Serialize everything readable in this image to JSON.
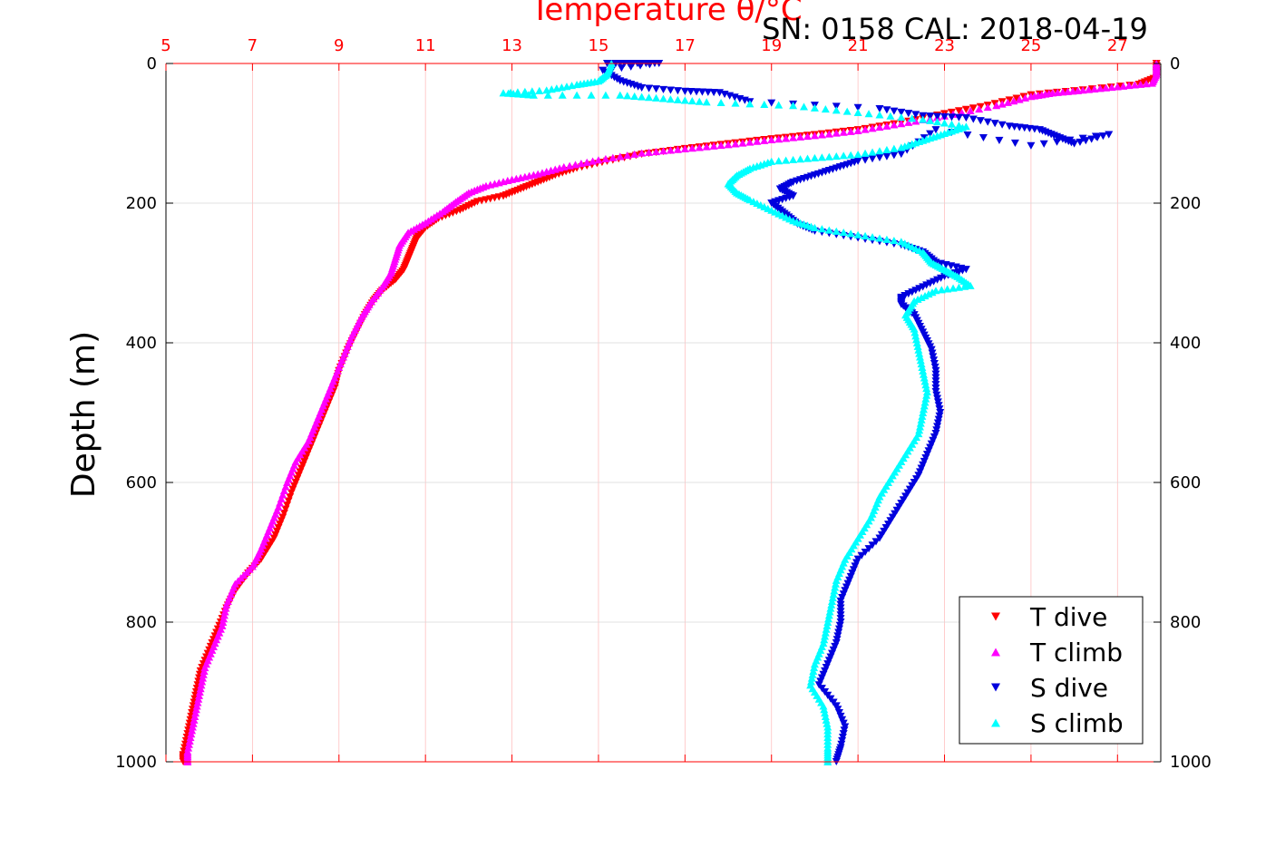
{
  "header": {
    "sn_cal_label": "SN: 0158  CAL: 2018-04-19"
  },
  "chart_data": {
    "type": "scatter",
    "top_axis": {
      "label": "Temperature θ/°C",
      "range": [
        5,
        28
      ],
      "ticks": [
        "5",
        "7",
        "9",
        "11",
        "13",
        "15",
        "17",
        "19",
        "21",
        "23",
        "25",
        "27"
      ],
      "color": "#ff0000"
    },
    "y_axis": {
      "label": "Depth (m)",
      "range": [
        0,
        1000
      ],
      "reversed": true,
      "ticks": [
        "0",
        "200",
        "400",
        "600",
        "800",
        "1000"
      ]
    },
    "grid": true,
    "legend": {
      "placement": "bottom-right",
      "entries": [
        {
          "name": "T dive",
          "marker": "triangle-down",
          "color": "#ff0000"
        },
        {
          "name": "T climb",
          "marker": "triangle-up",
          "color": "#ff00ff"
        },
        {
          "name": "S dive",
          "marker": "triangle-down",
          "color": "#0000dd"
        },
        {
          "name": "S climb",
          "marker": "triangle-up",
          "color": "#00ffff"
        }
      ]
    },
    "series": [
      {
        "name": "T dive",
        "marker": "triangle-down",
        "color": "#ff0000",
        "points": [
          [
            27.9,
            0
          ],
          [
            27.9,
            20
          ],
          [
            27.5,
            30
          ],
          [
            26.2,
            38
          ],
          [
            25.0,
            45
          ],
          [
            24.0,
            60
          ],
          [
            23.0,
            72
          ],
          [
            22.0,
            85
          ],
          [
            21.0,
            95
          ],
          [
            20.0,
            102
          ],
          [
            19.0,
            108
          ],
          [
            18.0,
            115
          ],
          [
            17.0,
            122
          ],
          [
            16.0,
            130
          ],
          [
            15.2,
            140
          ],
          [
            14.5,
            150
          ],
          [
            14.0,
            160
          ],
          [
            13.6,
            170
          ],
          [
            13.2,
            180
          ],
          [
            12.8,
            190
          ],
          [
            12.2,
            198
          ],
          [
            11.8,
            210
          ],
          [
            11.3,
            222
          ],
          [
            11.0,
            235
          ],
          [
            10.8,
            250
          ],
          [
            10.7,
            265
          ],
          [
            10.6,
            280
          ],
          [
            10.5,
            295
          ],
          [
            10.3,
            310
          ],
          [
            10.0,
            325
          ],
          [
            9.8,
            340
          ],
          [
            9.6,
            360
          ],
          [
            9.4,
            385
          ],
          [
            9.2,
            410
          ],
          [
            9.0,
            440
          ],
          [
            8.9,
            465
          ],
          [
            8.7,
            495
          ],
          [
            8.5,
            525
          ],
          [
            8.3,
            555
          ],
          [
            8.1,
            585
          ],
          [
            7.9,
            615
          ],
          [
            7.7,
            650
          ],
          [
            7.5,
            680
          ],
          [
            7.2,
            710
          ],
          [
            6.9,
            730
          ],
          [
            6.6,
            755
          ],
          [
            6.4,
            780
          ],
          [
            6.2,
            810
          ],
          [
            6.0,
            840
          ],
          [
            5.8,
            870
          ],
          [
            5.7,
            900
          ],
          [
            5.6,
            930
          ],
          [
            5.5,
            960
          ],
          [
            5.4,
            990
          ],
          [
            5.4,
            1000
          ]
        ]
      },
      {
        "name": "T climb",
        "marker": "triangle-up",
        "color": "#ff00ff",
        "points": [
          [
            27.9,
            0
          ],
          [
            27.9,
            15
          ],
          [
            27.8,
            28
          ],
          [
            27.0,
            33
          ],
          [
            26.2,
            38
          ],
          [
            25.5,
            42
          ],
          [
            25.0,
            47
          ],
          [
            24.2,
            60
          ],
          [
            23.0,
            75
          ],
          [
            22.0,
            86
          ],
          [
            21.0,
            96
          ],
          [
            20.0,
            103
          ],
          [
            19.0,
            109
          ],
          [
            18.0,
            116
          ],
          [
            17.0,
            122
          ],
          [
            16.0,
            128
          ],
          [
            15.0,
            138
          ],
          [
            14.2,
            148
          ],
          [
            13.6,
            158
          ],
          [
            13.0,
            166
          ],
          [
            12.4,
            175
          ],
          [
            12.0,
            185
          ],
          [
            11.7,
            198
          ],
          [
            11.4,
            212
          ],
          [
            11.0,
            228
          ],
          [
            10.6,
            242
          ],
          [
            10.4,
            260
          ],
          [
            10.3,
            280
          ],
          [
            10.2,
            300
          ],
          [
            10.0,
            320
          ],
          [
            9.7,
            345
          ],
          [
            9.5,
            365
          ],
          [
            9.3,
            390
          ],
          [
            9.1,
            420
          ],
          [
            8.9,
            450
          ],
          [
            8.7,
            480
          ],
          [
            8.5,
            510
          ],
          [
            8.3,
            540
          ],
          [
            8.0,
            570
          ],
          [
            7.8,
            600
          ],
          [
            7.6,
            635
          ],
          [
            7.4,
            665
          ],
          [
            7.2,
            695
          ],
          [
            7.0,
            720
          ],
          [
            6.6,
            745
          ],
          [
            6.4,
            775
          ],
          [
            6.3,
            805
          ],
          [
            6.1,
            835
          ],
          [
            5.9,
            865
          ],
          [
            5.8,
            895
          ],
          [
            5.7,
            925
          ],
          [
            5.6,
            955
          ],
          [
            5.5,
            985
          ],
          [
            5.5,
            1000
          ]
        ]
      },
      {
        "name": "S dive",
        "marker": "triangle-down",
        "color": "#0000dd",
        "points": [
          [
            15.2,
            0
          ],
          [
            15.8,
            0
          ],
          [
            16.4,
            0
          ],
          [
            15.1,
            10
          ],
          [
            15.5,
            25
          ],
          [
            16.0,
            35
          ],
          [
            17.0,
            40
          ],
          [
            17.8,
            42
          ],
          [
            18.5,
            55
          ],
          [
            21.5,
            65
          ],
          [
            22.5,
            75
          ],
          [
            23.5,
            78
          ],
          [
            24.5,
            90
          ],
          [
            25.2,
            95
          ],
          [
            25.6,
            105
          ],
          [
            26.0,
            115
          ],
          [
            26.8,
            102
          ],
          [
            25.0,
            118
          ],
          [
            22.8,
            95
          ],
          [
            22.0,
            130
          ],
          [
            21.0,
            140
          ],
          [
            20.5,
            150
          ],
          [
            20.0,
            160
          ],
          [
            19.5,
            170
          ],
          [
            19.2,
            180
          ],
          [
            19.5,
            190
          ],
          [
            19.0,
            200
          ],
          [
            19.3,
            215
          ],
          [
            19.6,
            230
          ],
          [
            20.0,
            240
          ],
          [
            21.0,
            250
          ],
          [
            22.0,
            260
          ],
          [
            22.5,
            270
          ],
          [
            22.8,
            285
          ],
          [
            23.5,
            295
          ],
          [
            23.0,
            305
          ],
          [
            22.5,
            320
          ],
          [
            22.0,
            335
          ],
          [
            22.0,
            345
          ],
          [
            22.3,
            360
          ],
          [
            22.5,
            385
          ],
          [
            22.7,
            410
          ],
          [
            22.8,
            440
          ],
          [
            22.8,
            470
          ],
          [
            22.9,
            500
          ],
          [
            22.8,
            530
          ],
          [
            22.6,
            560
          ],
          [
            22.4,
            590
          ],
          [
            22.1,
            620
          ],
          [
            21.8,
            650
          ],
          [
            21.5,
            680
          ],
          [
            21.0,
            710
          ],
          [
            20.8,
            740
          ],
          [
            20.6,
            770
          ],
          [
            20.6,
            800
          ],
          [
            20.5,
            830
          ],
          [
            20.3,
            860
          ],
          [
            20.1,
            890
          ],
          [
            20.5,
            920
          ],
          [
            20.7,
            950
          ],
          [
            20.6,
            980
          ],
          [
            20.5,
            1000
          ]
        ]
      },
      {
        "name": "S climb",
        "marker": "triangle-up",
        "color": "#00ffff",
        "points": [
          [
            15.3,
            0
          ],
          [
            15.2,
            15
          ],
          [
            15.0,
            25
          ],
          [
            14.5,
            30
          ],
          [
            13.8,
            38
          ],
          [
            12.8,
            42
          ],
          [
            13.5,
            45
          ],
          [
            15.5,
            45
          ],
          [
            16.5,
            50
          ],
          [
            17.5,
            55
          ],
          [
            19.5,
            60
          ],
          [
            21.0,
            70
          ],
          [
            22.5,
            80
          ],
          [
            23.5,
            90
          ],
          [
            23.0,
            100
          ],
          [
            22.5,
            110
          ],
          [
            22.0,
            120
          ],
          [
            21.0,
            130
          ],
          [
            20.0,
            135
          ],
          [
            19.0,
            140
          ],
          [
            18.5,
            150
          ],
          [
            18.2,
            160
          ],
          [
            18.0,
            172
          ],
          [
            18.2,
            185
          ],
          [
            18.5,
            195
          ],
          [
            19.0,
            210
          ],
          [
            19.5,
            225
          ],
          [
            20.0,
            235
          ],
          [
            21.0,
            245
          ],
          [
            22.0,
            255
          ],
          [
            22.5,
            270
          ],
          [
            22.7,
            285
          ],
          [
            23.0,
            295
          ],
          [
            23.3,
            305
          ],
          [
            23.6,
            318
          ],
          [
            22.8,
            325
          ],
          [
            22.3,
            340
          ],
          [
            22.1,
            360
          ],
          [
            22.3,
            380
          ],
          [
            22.4,
            410
          ],
          [
            22.5,
            440
          ],
          [
            22.6,
            470
          ],
          [
            22.5,
            500
          ],
          [
            22.4,
            530
          ],
          [
            22.1,
            560
          ],
          [
            21.8,
            590
          ],
          [
            21.5,
            620
          ],
          [
            21.3,
            650
          ],
          [
            21.0,
            680
          ],
          [
            20.7,
            710
          ],
          [
            20.5,
            740
          ],
          [
            20.4,
            770
          ],
          [
            20.3,
            800
          ],
          [
            20.2,
            830
          ],
          [
            20.0,
            860
          ],
          [
            19.9,
            890
          ],
          [
            20.2,
            920
          ],
          [
            20.3,
            950
          ],
          [
            20.3,
            980
          ],
          [
            20.3,
            1000
          ]
        ]
      }
    ]
  }
}
